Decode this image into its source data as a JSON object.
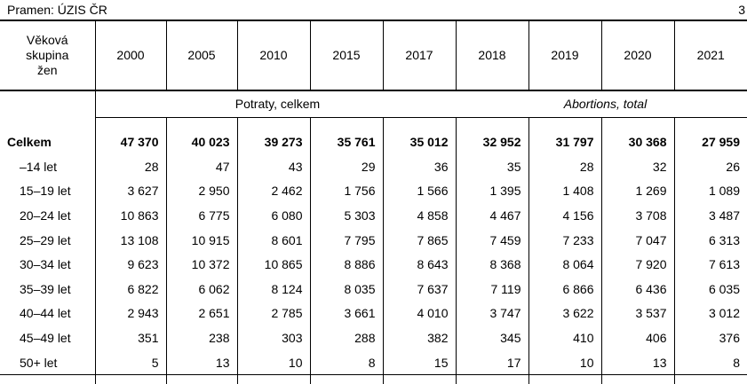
{
  "source_label": "Pramen: ÚZIS ČR",
  "edge_mark": "3",
  "table": {
    "age_header": "Věková\nskupina\nžen",
    "years": [
      "2000",
      "2005",
      "2010",
      "2015",
      "2017",
      "2018",
      "2019",
      "2020",
      "2021"
    ],
    "caption_cz": "Potraty, celkem",
    "caption_en": "Abortions, total",
    "total_row": {
      "label": "Celkem",
      "values": [
        "47 370",
        "40 023",
        "39 273",
        "35 761",
        "35 012",
        "32 952",
        "31 797",
        "30 368",
        "27 959"
      ]
    },
    "rows": [
      {
        "label": "–14 let",
        "values": [
          "28",
          "47",
          "43",
          "29",
          "36",
          "35",
          "28",
          "32",
          "26"
        ]
      },
      {
        "label": "15–19 let",
        "values": [
          "3 627",
          "2 950",
          "2 462",
          "1 756",
          "1 566",
          "1 395",
          "1 408",
          "1 269",
          "1 089"
        ]
      },
      {
        "label": "20–24 let",
        "values": [
          "10 863",
          "6 775",
          "6 080",
          "5 303",
          "4 858",
          "4 467",
          "4 156",
          "3 708",
          "3 487"
        ]
      },
      {
        "label": "25–29 let",
        "values": [
          "13 108",
          "10 915",
          "8 601",
          "7 795",
          "7 865",
          "7 459",
          "7 233",
          "7 047",
          "6 313"
        ]
      },
      {
        "label": "30–34 let",
        "values": [
          "9 623",
          "10 372",
          "10 865",
          "8 886",
          "8 643",
          "8 368",
          "8 064",
          "7 920",
          "7 613"
        ]
      },
      {
        "label": "35–39 let",
        "values": [
          "6 822",
          "6 062",
          "8 124",
          "8 035",
          "7 637",
          "7 119",
          "6 866",
          "6 436",
          "6 035"
        ]
      },
      {
        "label": "40–44 let",
        "values": [
          "2 943",
          "2 651",
          "2 785",
          "3 661",
          "4 010",
          "3 747",
          "3 622",
          "3 537",
          "3 012"
        ]
      },
      {
        "label": "45–49 let",
        "values": [
          "351",
          "238",
          "303",
          "288",
          "382",
          "345",
          "410",
          "406",
          "376"
        ]
      },
      {
        "label": "50+ let",
        "values": [
          "5",
          "13",
          "10",
          "8",
          "15",
          "17",
          "10",
          "13",
          "8"
        ]
      }
    ]
  }
}
